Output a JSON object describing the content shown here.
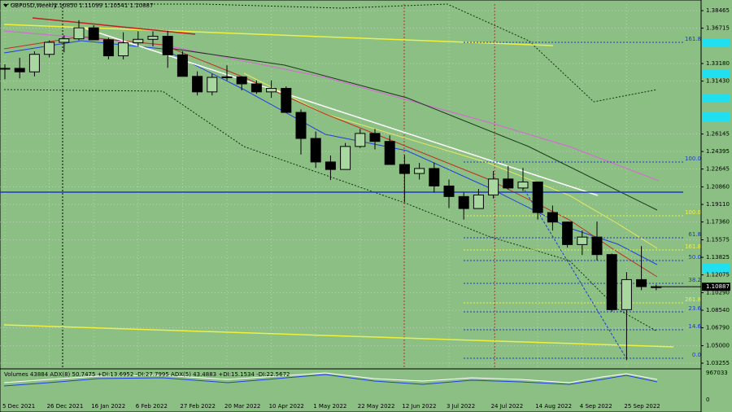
{
  "chart_data": {
    "type": "candlestick",
    "title": "GBPUSD,Weekly",
    "ohlc_label": "1.10850 1.11099 1.10541 1.10887",
    "categories": [
      "5 Dec 2021",
      null,
      null,
      "26 Dec 2021",
      null,
      null,
      "16 Jan 2022",
      null,
      null,
      "6 Feb 2022",
      null,
      null,
      "27 Feb 2022",
      null,
      null,
      "20 Mar 2022",
      null,
      null,
      "10 Apr 2022",
      null,
      null,
      "1 May 2022",
      null,
      null,
      "22 May 2022",
      null,
      null,
      "12 Jun 2022",
      null,
      null,
      "3 Jul 2022",
      null,
      null,
      "24 Jul 2022",
      null,
      null,
      "14 Aug 2022",
      null,
      null,
      "4 Sep 2022",
      null,
      null,
      "25 Sep 2022",
      null,
      null
    ],
    "open": [
      1.3265,
      1.327,
      1.3235,
      1.341,
      1.353,
      1.3565,
      1.3675,
      1.3555,
      1.3395,
      1.3525,
      1.356,
      1.359,
      1.3405,
      1.319,
      1.3035,
      1.318,
      1.3185,
      1.3115,
      1.3035,
      1.307,
      1.283,
      1.257,
      1.2335,
      1.226,
      1.249,
      1.262,
      1.254,
      1.231,
      1.222,
      1.227,
      1.2095,
      1.199,
      1.187,
      1.2005,
      1.2165,
      1.2075,
      1.2135,
      1.183,
      1.1735,
      1.151,
      1.1585,
      1.141,
      1.086,
      1.116,
      1.1085
    ],
    "high": [
      1.331,
      1.3375,
      1.344,
      1.355,
      1.36,
      1.375,
      1.37,
      1.3575,
      1.363,
      1.364,
      1.364,
      1.3645,
      1.344,
      1.324,
      1.3215,
      1.33,
      1.318,
      1.315,
      1.315,
      1.309,
      1.286,
      1.264,
      1.24,
      1.2525,
      1.2665,
      1.2665,
      1.26,
      1.2405,
      1.2325,
      1.233,
      1.216,
      1.203,
      1.2065,
      1.2245,
      1.2295,
      1.2275,
      1.214,
      1.19,
      1.174,
      1.165,
      1.174,
      1.142,
      1.1235,
      1.1495,
      1.11099
    ],
    "low": [
      1.316,
      1.317,
      1.319,
      1.338,
      1.343,
      1.355,
      1.355,
      1.336,
      1.336,
      1.349,
      1.349,
      1.3275,
      1.319,
      1.3,
      1.3,
      1.315,
      1.305,
      1.3015,
      1.2975,
      1.283,
      1.241,
      1.2275,
      1.2155,
      1.226,
      1.2475,
      1.246,
      1.231,
      1.1935,
      1.216,
      1.203,
      1.1875,
      1.176,
      1.187,
      1.197,
      1.206,
      1.2045,
      1.176,
      1.165,
      1.148,
      1.1405,
      1.135,
      1.084,
      1.0356,
      1.1055,
      1.10541
    ],
    "close": [
      1.327,
      1.3235,
      1.341,
      1.353,
      1.3565,
      1.3675,
      1.3555,
      1.3395,
      1.3525,
      1.356,
      1.359,
      1.3405,
      1.319,
      1.3035,
      1.318,
      1.3185,
      1.3115,
      1.3035,
      1.307,
      1.283,
      1.257,
      1.2335,
      1.226,
      1.249,
      1.262,
      1.254,
      1.231,
      1.222,
      1.227,
      1.2095,
      1.199,
      1.187,
      1.2005,
      1.2165,
      1.2075,
      1.2135,
      1.183,
      1.1735,
      1.151,
      1.1585,
      1.141,
      1.086,
      1.116,
      1.109,
      1.10887
    ],
    "current_price": 1.10887,
    "up_color": "#a8d8a0",
    "down_color": "#000000",
    "ylim": [
      1.0277,
      1.3912
    ],
    "yticks": [
      1.38465,
      1.36715,
      {
        "value": 1.3318,
        "label": "1.33180"
      },
      {
        "value": 1.3143,
        "label": "1.31430"
      },
      1.26145,
      1.24395,
      1.22645,
      {
        "value": 1.2086,
        "label": "1.20860"
      },
      {
        "value": 1.1911,
        "label": "1.19110"
      },
      {
        "value": 1.1736,
        "label": "1.17360"
      },
      1.15575,
      1.13825,
      1.12075,
      {
        "value": 1.1029,
        "label": "1.10290"
      },
      {
        "value": 1.0854,
        "label": "1.08540"
      },
      {
        "value": 1.0679,
        "label": "1.06790"
      },
      {
        "value": 1.05,
        "label": "1.05000"
      },
      1.03255
    ],
    "fib_labels": [
      {
        "label": "161.8",
        "color": "#1a3cc8"
      },
      {
        "label": "100.0",
        "color": "#1a3cc8"
      },
      {
        "label": "100.0",
        "color": "#f0f040"
      },
      {
        "label": "61.8",
        "color": "#1a3cc8"
      },
      {
        "label": "161.8",
        "color": "#f0f040"
      },
      {
        "label": "50.0",
        "color": "#1a3cc8"
      },
      {
        "label": "38.2",
        "color": "#1a3cc8"
      },
      {
        "label": "261.8",
        "color": "#f0f040"
      },
      {
        "label": "23.6",
        "color": "#1a3cc8"
      },
      {
        "label": "14.6",
        "color": "#1a3cc8"
      },
      {
        "label": "0.0",
        "color": "#1a3cc8"
      }
    ],
    "indicator_label": "Volumes 43884  ADX(8) 50.7475 +DI:13.6952 -DI:27.7995  ADX(5) 43.4883 +DI:15.1534 -DI:22.5672",
    "indicator_yticks": [
      967033,
      0
    ]
  }
}
